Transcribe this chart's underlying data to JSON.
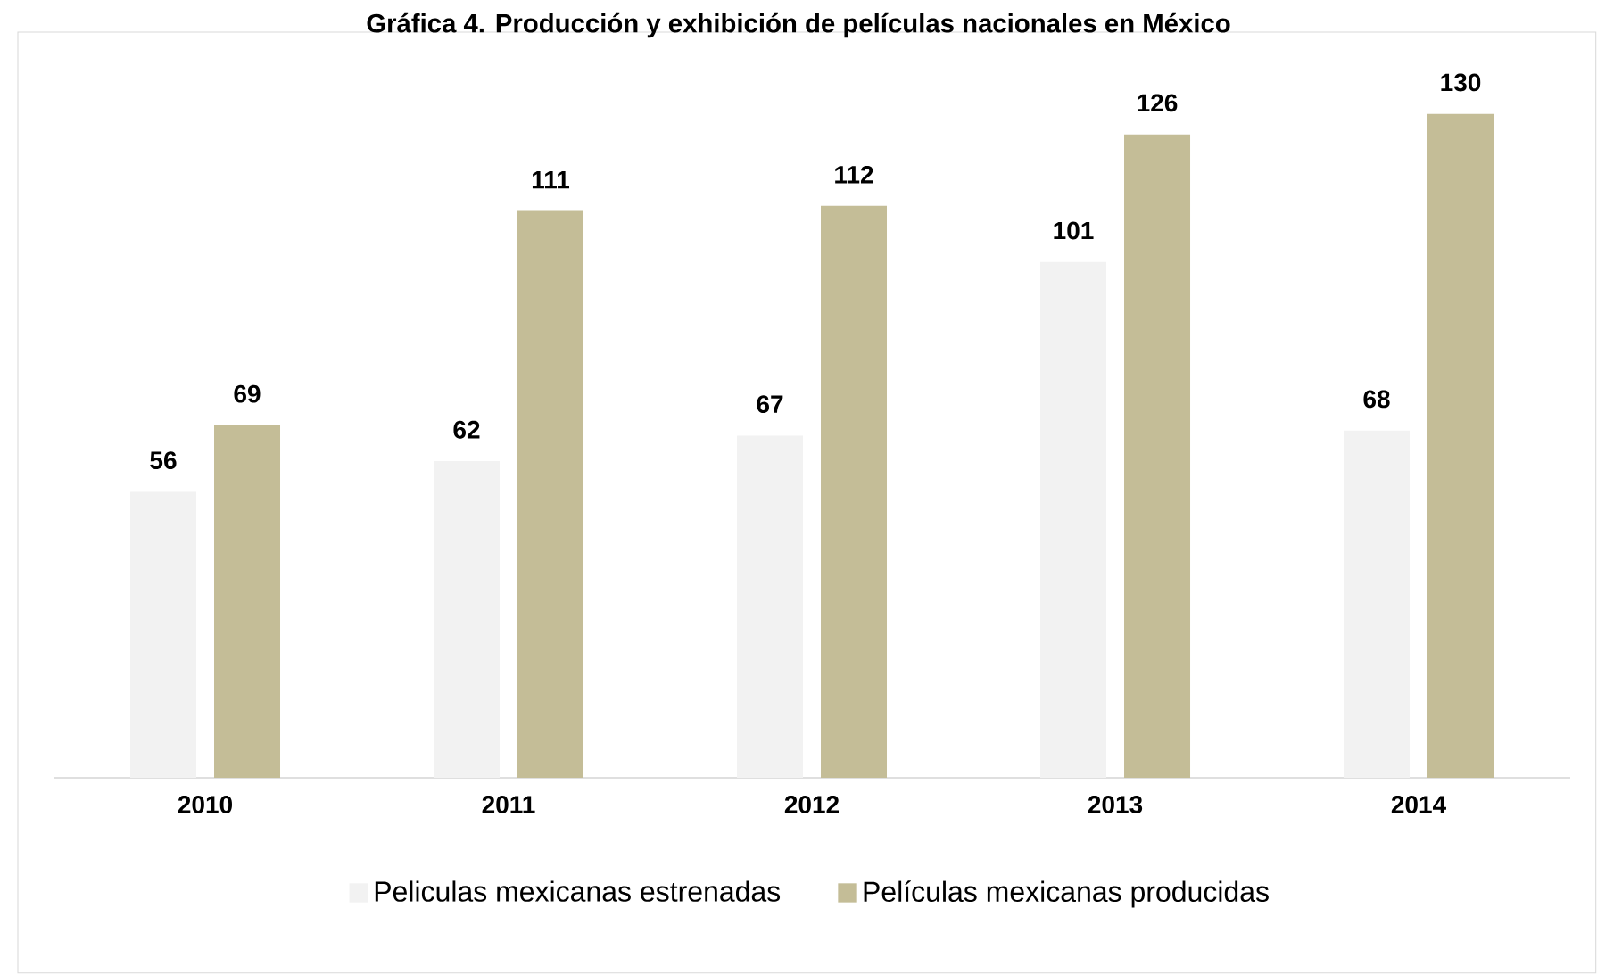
{
  "chart_data": {
    "type": "bar",
    "title": "Gráfica 4. Producción y exhibición de películas nacionales en México",
    "categories": [
      "2010",
      "2011",
      "2012",
      "2013",
      "2014"
    ],
    "series": [
      {
        "name": "Peliculas mexicanas estrenadas",
        "color": "#f2f2f2",
        "values": [
          56,
          62,
          67,
          101,
          68
        ]
      },
      {
        "name": "Películas mexicanas producidas",
        "color": "#c4bd97",
        "values": [
          69,
          111,
          112,
          126,
          130
        ]
      }
    ],
    "data_labels": true,
    "legend": "bottom",
    "tick_labels": "x"
  }
}
